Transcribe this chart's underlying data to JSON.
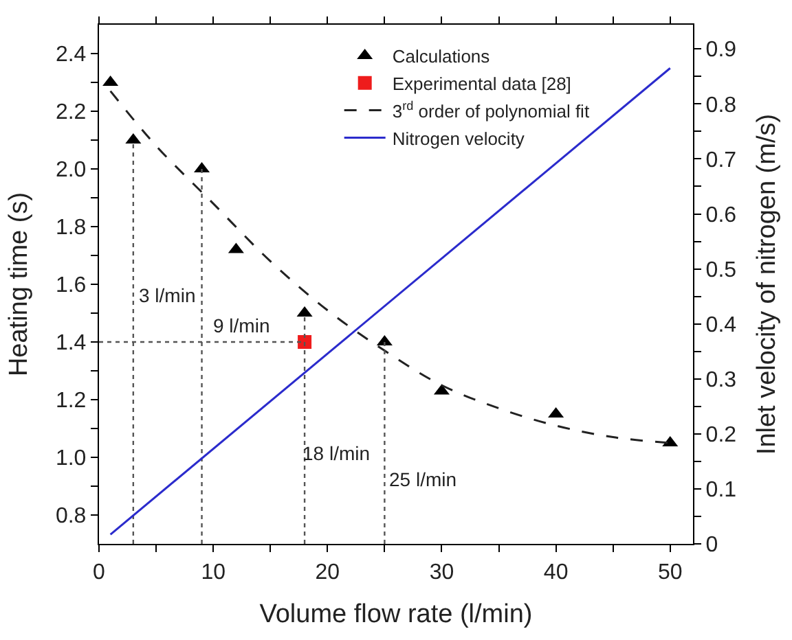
{
  "chart_data": {
    "type": "scatter",
    "xlabel": "Volume flow rate (l/min)",
    "ylabel": "Heating time (s)",
    "y2label": "Inlet velocity of nitrogen (m/s)",
    "xlim": [
      0,
      52
    ],
    "ylim": [
      0.7,
      2.5
    ],
    "y2lim": [
      0,
      0.944
    ],
    "xticks": [
      0,
      {
        "value": 5,
        "label": null
      },
      10,
      {
        "value": 15,
        "label": null
      },
      20,
      {
        "value": 25,
        "label": null
      },
      30,
      {
        "value": 35,
        "label": null
      },
      40,
      {
        "value": 45,
        "label": null
      },
      50
    ],
    "yticks": [
      {
        "value": 0.8,
        "label": "0.8"
      },
      {
        "value": 0.9,
        "label": null
      },
      {
        "value": 1.0,
        "label": "1.0"
      },
      {
        "value": 1.1,
        "label": null
      },
      1.2,
      {
        "value": 1.3,
        "label": null
      },
      1.4,
      {
        "value": 1.5,
        "label": null
      },
      1.6,
      {
        "value": 1.7,
        "label": null
      },
      1.8,
      {
        "value": 1.9,
        "label": null
      },
      {
        "value": 2.0,
        "label": "2.0"
      },
      {
        "value": 2.1,
        "label": null
      },
      2.2,
      {
        "value": 2.3,
        "label": null
      },
      2.4
    ],
    "y2ticks": [
      0,
      {
        "value": 0.05,
        "label": null
      },
      0.1,
      {
        "value": 0.15,
        "label": null
      },
      0.2,
      {
        "value": 0.25,
        "label": null
      },
      0.3,
      {
        "value": 0.35,
        "label": null
      },
      0.4,
      {
        "value": 0.45,
        "label": null
      },
      0.5,
      {
        "value": 0.55,
        "label": null
      },
      0.6,
      {
        "value": 0.65,
        "label": null
      },
      0.7,
      {
        "value": 0.75,
        "label": null
      },
      0.8,
      {
        "value": 0.85,
        "label": null
      },
      0.9
    ],
    "legend": "top",
    "series": [
      {
        "name": "Calculations",
        "marker": "triangle",
        "color": "#000000",
        "x": [
          1,
          3,
          9,
          12,
          18,
          25,
          30,
          40,
          50
        ],
        "values": [
          2.3,
          2.1,
          2.0,
          1.72,
          1.5,
          1.4,
          1.23,
          1.15,
          1.05
        ]
      },
      {
        "name": "Experimental data [28]",
        "marker": "square",
        "color": "#ee1c1c",
        "x": [
          18
        ],
        "values": [
          1.4
        ]
      },
      {
        "name": "3$^{rd}$ order of polynomial fit",
        "type": "line",
        "line_style": "dashed",
        "color": "#222222",
        "x": [
          1,
          5,
          10,
          15,
          20,
          25,
          30,
          35,
          40,
          45,
          50
        ],
        "values": [
          2.27,
          2.08,
          1.88,
          1.68,
          1.51,
          1.37,
          1.25,
          1.17,
          1.11,
          1.07,
          1.05
        ]
      },
      {
        "name": "Nitrogen velocity",
        "type": "line",
        "line_style": "solid",
        "axis": "y2",
        "color": "#2b2bcc",
        "x": [
          1,
          50
        ],
        "values": [
          0.017,
          0.865
        ]
      },
      {
        "type": "line",
        "line_style": "dotted",
        "color": "#555555",
        "x": [
          3,
          3
        ],
        "values": [
          0.7,
          2.1
        ]
      },
      {
        "type": "line",
        "line_style": "dotted",
        "color": "#555555",
        "x": [
          9,
          9
        ],
        "values": [
          0.7,
          2.0
        ]
      },
      {
        "type": "line",
        "line_style": "dotted",
        "color": "#555555",
        "x": [
          18,
          18
        ],
        "values": [
          0.7,
          1.5
        ]
      },
      {
        "type": "line",
        "line_style": "dotted",
        "color": "#555555",
        "x": [
          25,
          25
        ],
        "values": [
          0.7,
          1.4
        ]
      },
      {
        "type": "line",
        "line_style": "dotted",
        "color": "#555555",
        "x": [
          0,
          18
        ],
        "values": [
          1.4,
          1.4
        ]
      }
    ],
    "annotations": [
      "3 l/min",
      "9 l/min",
      "18 l/min",
      "25 l/min"
    ]
  }
}
